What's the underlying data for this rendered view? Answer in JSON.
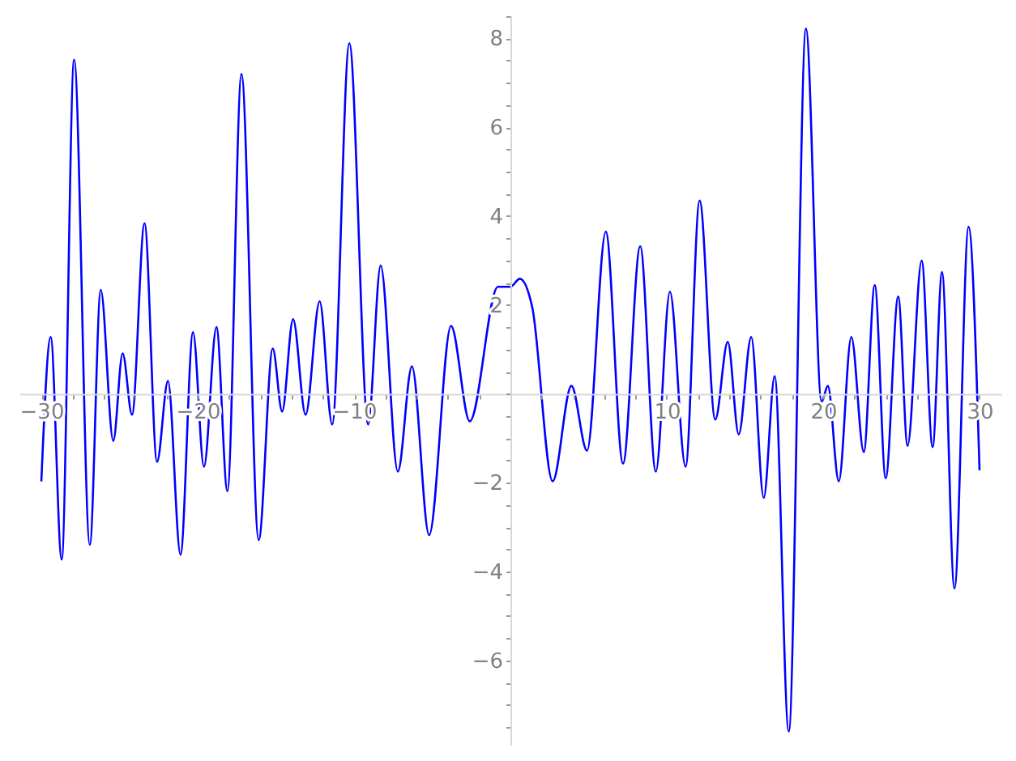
{
  "chart_data": {
    "type": "line",
    "xlim": [
      -31.4,
      31.4
    ],
    "ylim": [
      -7.9,
      8.5
    ],
    "xticks": [
      {
        "value": -30,
        "label": "−30"
      },
      {
        "value": -28,
        "label": null
      },
      {
        "value": -26,
        "label": null
      },
      {
        "value": -24,
        "label": null
      },
      {
        "value": -22,
        "label": null
      },
      {
        "value": -20,
        "label": "−20"
      },
      {
        "value": -18,
        "label": null
      },
      {
        "value": -16,
        "label": null
      },
      {
        "value": -14,
        "label": null
      },
      {
        "value": -12,
        "label": null
      },
      {
        "value": -10,
        "label": "−10"
      },
      {
        "value": -8,
        "label": null
      },
      {
        "value": -6,
        "label": null
      },
      {
        "value": -4,
        "label": null
      },
      {
        "value": -2,
        "label": null
      },
      {
        "value": 0,
        "label": null
      },
      {
        "value": 2,
        "label": null
      },
      {
        "value": 4,
        "label": null
      },
      {
        "value": 6,
        "label": null
      },
      {
        "value": 8,
        "label": null
      },
      10,
      {
        "value": 12,
        "label": null
      },
      {
        "value": 14,
        "label": null
      },
      {
        "value": 16,
        "label": null
      },
      {
        "value": 18,
        "label": null
      },
      20,
      {
        "value": 22,
        "label": null
      },
      {
        "value": 24,
        "label": null
      },
      {
        "value": 26,
        "label": null
      },
      {
        "value": 28,
        "label": null
      },
      30
    ],
    "yticks": [
      {
        "value": -7.5,
        "label": null
      },
      {
        "value": -7,
        "label": null
      },
      {
        "value": -6.5,
        "label": null
      },
      {
        "value": -6,
        "label": "−6"
      },
      {
        "value": -5.5,
        "label": null
      },
      {
        "value": -5,
        "label": null
      },
      {
        "value": -4.5,
        "label": null
      },
      {
        "value": -4,
        "label": "−4"
      },
      {
        "value": -3.5,
        "label": null
      },
      {
        "value": -3,
        "label": null
      },
      {
        "value": -2.5,
        "label": null
      },
      {
        "value": -2,
        "label": "−2"
      },
      {
        "value": -1.5,
        "label": null
      },
      {
        "value": -1,
        "label": null
      },
      {
        "value": -0.5,
        "label": null
      },
      {
        "value": 0,
        "label": null
      },
      {
        "value": 0.5,
        "label": null
      },
      {
        "value": 1,
        "label": null
      },
      {
        "value": 1.5,
        "label": null
      },
      2,
      {
        "value": 2.5,
        "label": null
      },
      {
        "value": 3,
        "label": null
      },
      {
        "value": 3.5,
        "label": null
      },
      4,
      {
        "value": 4.5,
        "label": null
      },
      {
        "value": 5,
        "label": null
      },
      {
        "value": 5.5,
        "label": null
      },
      6,
      {
        "value": 6.5,
        "label": null
      },
      {
        "value": 7,
        "label": null
      },
      {
        "value": 7.5,
        "label": null
      },
      8,
      {
        "value": 8.5,
        "label": null
      }
    ],
    "grid": false,
    "series": [
      {
        "color": "#0000ff",
        "x": [
          -30,
          -29.4,
          -28.7,
          -27.9,
          -26.9,
          -26.2,
          -25.4,
          -24.8,
          -24.2,
          -23.4,
          -22.6,
          -21.9,
          -21.1,
          -20.3,
          -19.6,
          -18.8,
          -18.1,
          -17.2,
          -16.1,
          -15.2,
          -14.6,
          -13.9,
          -13.1,
          -12.2,
          -11.4,
          -10.3,
          -9.1,
          -8.3,
          -7.2,
          -6.3,
          -5.2,
          -3.8,
          -2.6,
          -0.8,
          0,
          0.6,
          1.4,
          2.7,
          3.9,
          4.9,
          6.1,
          7.2,
          8.3,
          9.3,
          10.2,
          11.2,
          12.1,
          13.1,
          13.9,
          14.6,
          15.4,
          16.2,
          16.9,
          17.8,
          18.9,
          19.9,
          20.3,
          21.0,
          21.8,
          22.6,
          23.3,
          24.0,
          24.8,
          25.4,
          26.3,
          27.0,
          27.6,
          28.4,
          29.3,
          30
        ],
        "values": [
          -1.97,
          1.28,
          -3.73,
          7.52,
          -3.4,
          2.34,
          -1.06,
          0.91,
          -0.47,
          3.84,
          -1.53,
          0.29,
          -3.62,
          1.39,
          -1.64,
          1.5,
          -2.19,
          7.2,
          -3.29,
          1.02,
          -0.4,
          1.68,
          -0.47,
          2.08,
          -0.69,
          7.89,
          -0.69,
          2.89,
          -1.75,
          0.62,
          -3.18,
          1.53,
          -0.62,
          2.41,
          2.41,
          2.59,
          1.94,
          -1.97,
          0.18,
          -1.28,
          3.65,
          -1.57,
          3.32,
          -1.75,
          2.3,
          -1.64,
          4.35,
          -0.58,
          1.17,
          -0.91,
          1.28,
          -2.34,
          0.4,
          -7.6,
          8.22,
          -0.18,
          0.18,
          -1.97,
          1.28,
          -1.31,
          2.45,
          -1.9,
          2.19,
          -1.17,
          3.0,
          -1.2,
          2.74,
          -4.38,
          3.76,
          -1.72
        ]
      }
    ]
  }
}
